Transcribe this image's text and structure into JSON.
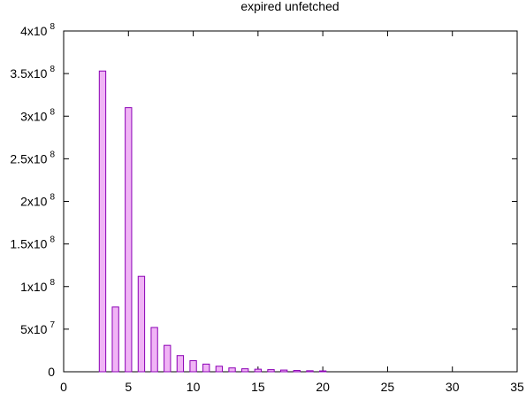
{
  "chart_data": {
    "type": "bar",
    "title": "expired unfetched",
    "xlabel": "",
    "ylabel": "",
    "xlim": [
      0,
      35
    ],
    "ylim": [
      0,
      400000000
    ],
    "grid": false,
    "legend": "none",
    "x_ticks": [
      "0",
      "5",
      "10",
      "15",
      "20",
      "25",
      "30",
      "35"
    ],
    "y_ticks": [
      {
        "value": 0,
        "mantissa": "0",
        "exponent": ""
      },
      {
        "value": 50000000,
        "mantissa": "5x10",
        "exponent": "7"
      },
      {
        "value": 100000000,
        "mantissa": "1x10",
        "exponent": "8"
      },
      {
        "value": 150000000,
        "mantissa": "1.5x10",
        "exponent": "8"
      },
      {
        "value": 200000000,
        "mantissa": "2x10",
        "exponent": "8"
      },
      {
        "value": 250000000,
        "mantissa": "2.5x10",
        "exponent": "8"
      },
      {
        "value": 300000000,
        "mantissa": "3x10",
        "exponent": "8"
      },
      {
        "value": 350000000,
        "mantissa": "3.5x10",
        "exponent": "8"
      },
      {
        "value": 400000000,
        "mantissa": "4x10",
        "exponent": "8"
      }
    ],
    "x": [
      3,
      4,
      5,
      6,
      7,
      8,
      9,
      10,
      11,
      12,
      13,
      14,
      15,
      16,
      17,
      18,
      19,
      20
    ],
    "values": [
      353000000,
      76000000,
      310000000,
      112000000,
      52000000,
      31000000,
      19000000,
      13000000,
      9000000,
      6500000,
      4500000,
      3500000,
      3000000,
      2500000,
      2000000,
      1500000,
      1200000,
      1000000
    ],
    "colors": {
      "bar_fill": "#f0b4f5",
      "bar_stroke": "#8b00b5",
      "axis": "#000000"
    }
  }
}
